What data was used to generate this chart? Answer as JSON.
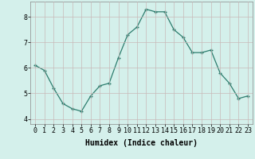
{
  "x": [
    0,
    1,
    2,
    3,
    4,
    5,
    6,
    7,
    8,
    9,
    10,
    11,
    12,
    13,
    14,
    15,
    16,
    17,
    18,
    19,
    20,
    21,
    22,
    23
  ],
  "y": [
    6.1,
    5.9,
    5.2,
    4.6,
    4.4,
    4.3,
    4.9,
    5.3,
    5.4,
    6.4,
    7.3,
    7.6,
    8.3,
    8.2,
    8.2,
    7.5,
    7.2,
    6.6,
    6.6,
    6.7,
    5.8,
    5.4,
    4.8,
    4.9
  ],
  "line_color": "#2d7d6e",
  "marker_color": "#2d7d6e",
  "bg_color": "#d4f0eb",
  "grid_color_major": "#c8b8b8",
  "grid_color_minor": "#c8e8e0",
  "xlabel": "Humidex (Indice chaleur)",
  "xlim": [
    -0.5,
    23.5
  ],
  "ylim": [
    3.8,
    8.6
  ],
  "yticks": [
    4,
    5,
    6,
    7,
    8
  ],
  "xticks": [
    0,
    1,
    2,
    3,
    4,
    5,
    6,
    7,
    8,
    9,
    10,
    11,
    12,
    13,
    14,
    15,
    16,
    17,
    18,
    19,
    20,
    21,
    22,
    23
  ],
  "xtick_labels": [
    "0",
    "1",
    "2",
    "3",
    "4",
    "5",
    "6",
    "7",
    "8",
    "9",
    "10",
    "11",
    "12",
    "13",
    "14",
    "15",
    "16",
    "17",
    "18",
    "19",
    "20",
    "21",
    "22",
    "23"
  ],
  "label_fontsize": 7,
  "tick_fontsize": 6
}
